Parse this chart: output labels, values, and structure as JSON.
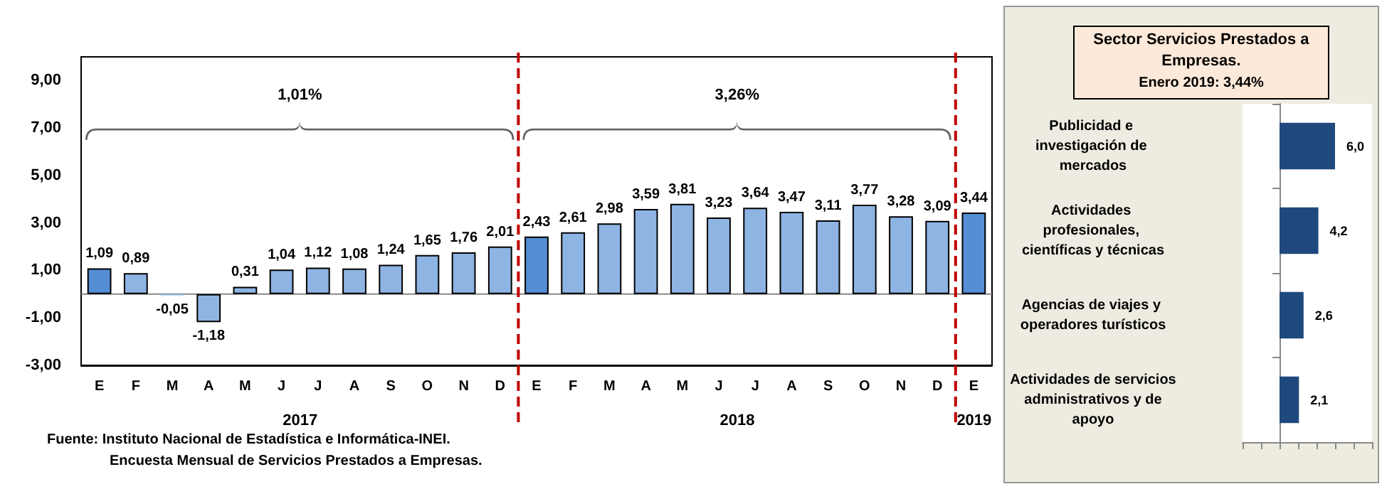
{
  "chart_data": [
    {
      "type": "bar",
      "categories": [
        "E",
        "F",
        "M",
        "A",
        "M",
        "J",
        "J",
        "A",
        "S",
        "O",
        "N",
        "D",
        "E",
        "F",
        "M",
        "A",
        "M",
        "J",
        "J",
        "A",
        "S",
        "O",
        "N",
        "D",
        "E"
      ],
      "values": [
        1.09,
        0.89,
        -0.05,
        -1.18,
        0.31,
        1.04,
        1.12,
        1.08,
        1.24,
        1.65,
        1.76,
        2.01,
        2.43,
        2.61,
        2.98,
        3.59,
        3.81,
        3.23,
        3.64,
        3.47,
        3.11,
        3.77,
        3.28,
        3.09,
        3.44
      ],
      "value_labels": [
        "1,09",
        "0,89",
        "-0,05",
        "-1,18",
        "0,31",
        "1,04",
        "1,12",
        "1,08",
        "1,24",
        "1,65",
        "1,76",
        "2,01",
        "2,43",
        "2,61",
        "2,98",
        "3,59",
        "3,81",
        "3,23",
        "3,64",
        "3,47",
        "3,11",
        "3,77",
        "3,28",
        "3,09",
        "3,44"
      ],
      "colors": [
        "#558ed5",
        "#8eb4e3",
        "#8eb4e3",
        "#8eb4e3",
        "#8eb4e3",
        "#8eb4e3",
        "#8eb4e3",
        "#8eb4e3",
        "#8eb4e3",
        "#8eb4e3",
        "#8eb4e3",
        "#8eb4e3",
        "#558ed5",
        "#8eb4e3",
        "#8eb4e3",
        "#8eb4e3",
        "#8eb4e3",
        "#8eb4e3",
        "#8eb4e3",
        "#8eb4e3",
        "#8eb4e3",
        "#8eb4e3",
        "#8eb4e3",
        "#8eb4e3",
        "#558ed5"
      ],
      "ylim": [
        -3,
        10
      ],
      "yticks": [
        {
          "value": -3,
          "label": "-3,00"
        },
        {
          "value": -1,
          "label": "-1,00"
        },
        {
          "value": 1,
          "label": "1,00"
        },
        {
          "value": 3,
          "label": "3,00"
        },
        {
          "value": 5,
          "label": "5,00"
        },
        {
          "value": 7,
          "label": "7,00"
        },
        {
          "value": 9,
          "label": "9,00"
        }
      ],
      "annotations": [
        "1,01%",
        "3,26%",
        "2017",
        "2018",
        "2019",
        "Fuente:  Instituto Nacional de Estadística e Informática-INEI.",
        "Encuesta Mensual de Servicios Prestados a Empresas."
      ]
    },
    {
      "type": "bar",
      "orientation": "horizontal",
      "title": "Sector Servicios Prestados a Empresas.",
      "subtitle": "Enero 2019: 3,44%",
      "categories": [
        "Publicidad e investigación de mercados",
        "Actividades profesionales, científicas y técnicas",
        "Agencias de viajes y operadores turísticos",
        "Actividades de servicios administrativos y de apoyo"
      ],
      "values": [
        6.0,
        4.2,
        2.6,
        2.1
      ],
      "value_labels": [
        "6,0",
        "4,2",
        "2,6",
        "2,1"
      ],
      "color": "#1f497d",
      "xlim": [
        -4,
        10
      ],
      "xticks": [
        {
          "value": -4,
          "label": null
        },
        {
          "value": -2,
          "label": null
        },
        {
          "value": 0,
          "label": null
        },
        {
          "value": 2,
          "label": null
        },
        {
          "value": 4,
          "label": null
        },
        {
          "value": 6,
          "label": null
        },
        {
          "value": 8,
          "label": null
        },
        {
          "value": 10,
          "label": null
        }
      ],
      "tick_labels": "y"
    }
  ]
}
